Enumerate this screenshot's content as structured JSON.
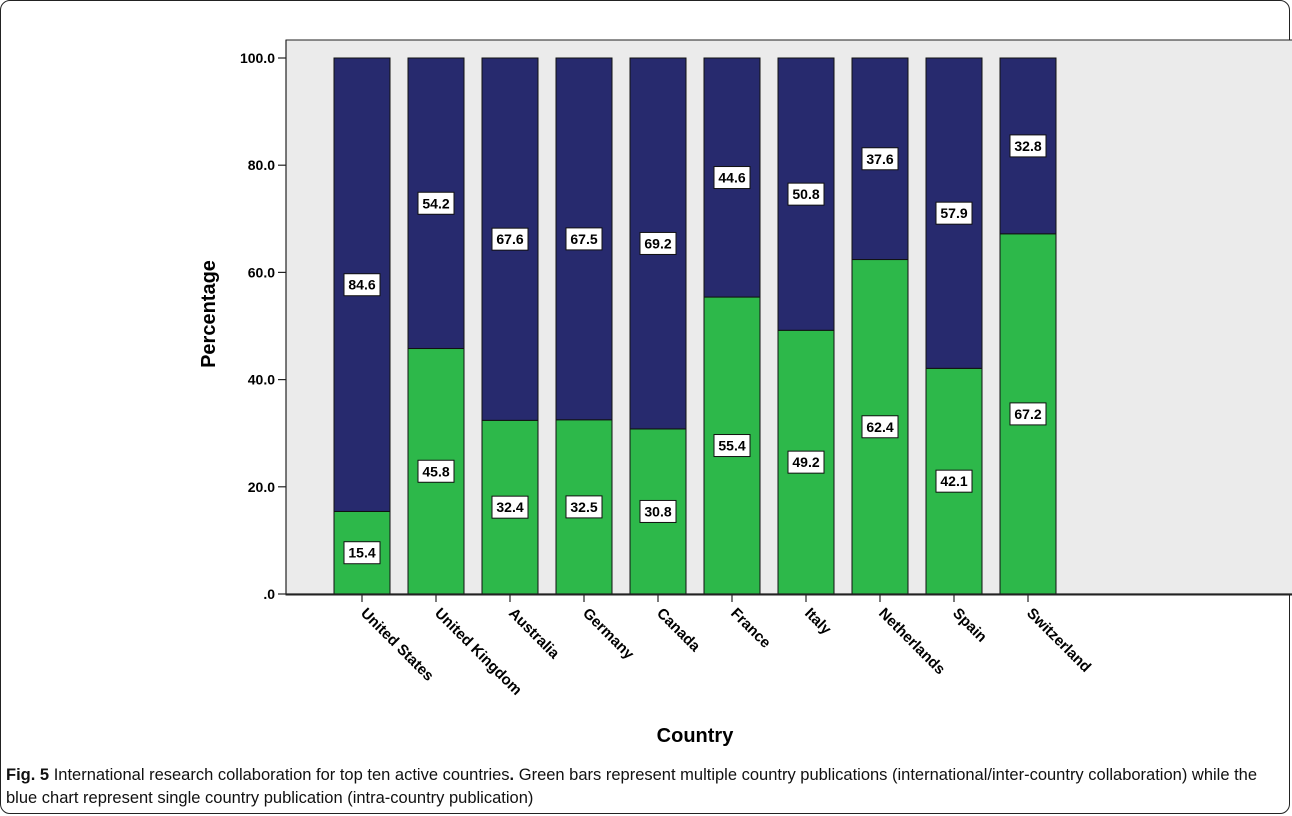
{
  "figure": {
    "label": "Fig. 5",
    "title": "International research collaboration for top ten active countries",
    "caption_rest": "Green bars represent multiple country publications (international/inter-country collaboration) while the blue chart represent single country publication (intra-country publication)"
  },
  "chart_data": {
    "type": "bar",
    "stacked": true,
    "percent": true,
    "xlabel": "Country",
    "ylabel": "Percentage",
    "ylim": [
      0,
      100
    ],
    "yticks": [
      ".0",
      "20.0",
      "40.0",
      "60.0",
      "80.0",
      "100.0"
    ],
    "categories": [
      "United States",
      "United Kingdom",
      "Australia",
      "Germany",
      "Canada",
      "France",
      "Italy",
      "Netherlands",
      "Spain",
      "Switzerland"
    ],
    "series": [
      {
        "color": "#2db84a",
        "values": [
          15.4,
          45.8,
          32.4,
          32.5,
          30.8,
          55.4,
          49.2,
          62.4,
          42.1,
          67.2
        ]
      },
      {
        "color": "#272a6e",
        "values": [
          84.6,
          54.2,
          67.6,
          67.5,
          69.2,
          44.6,
          50.8,
          37.6,
          57.9,
          32.8
        ]
      }
    ],
    "plot_background": "#ebebeb",
    "grid": false,
    "legend": "none"
  }
}
